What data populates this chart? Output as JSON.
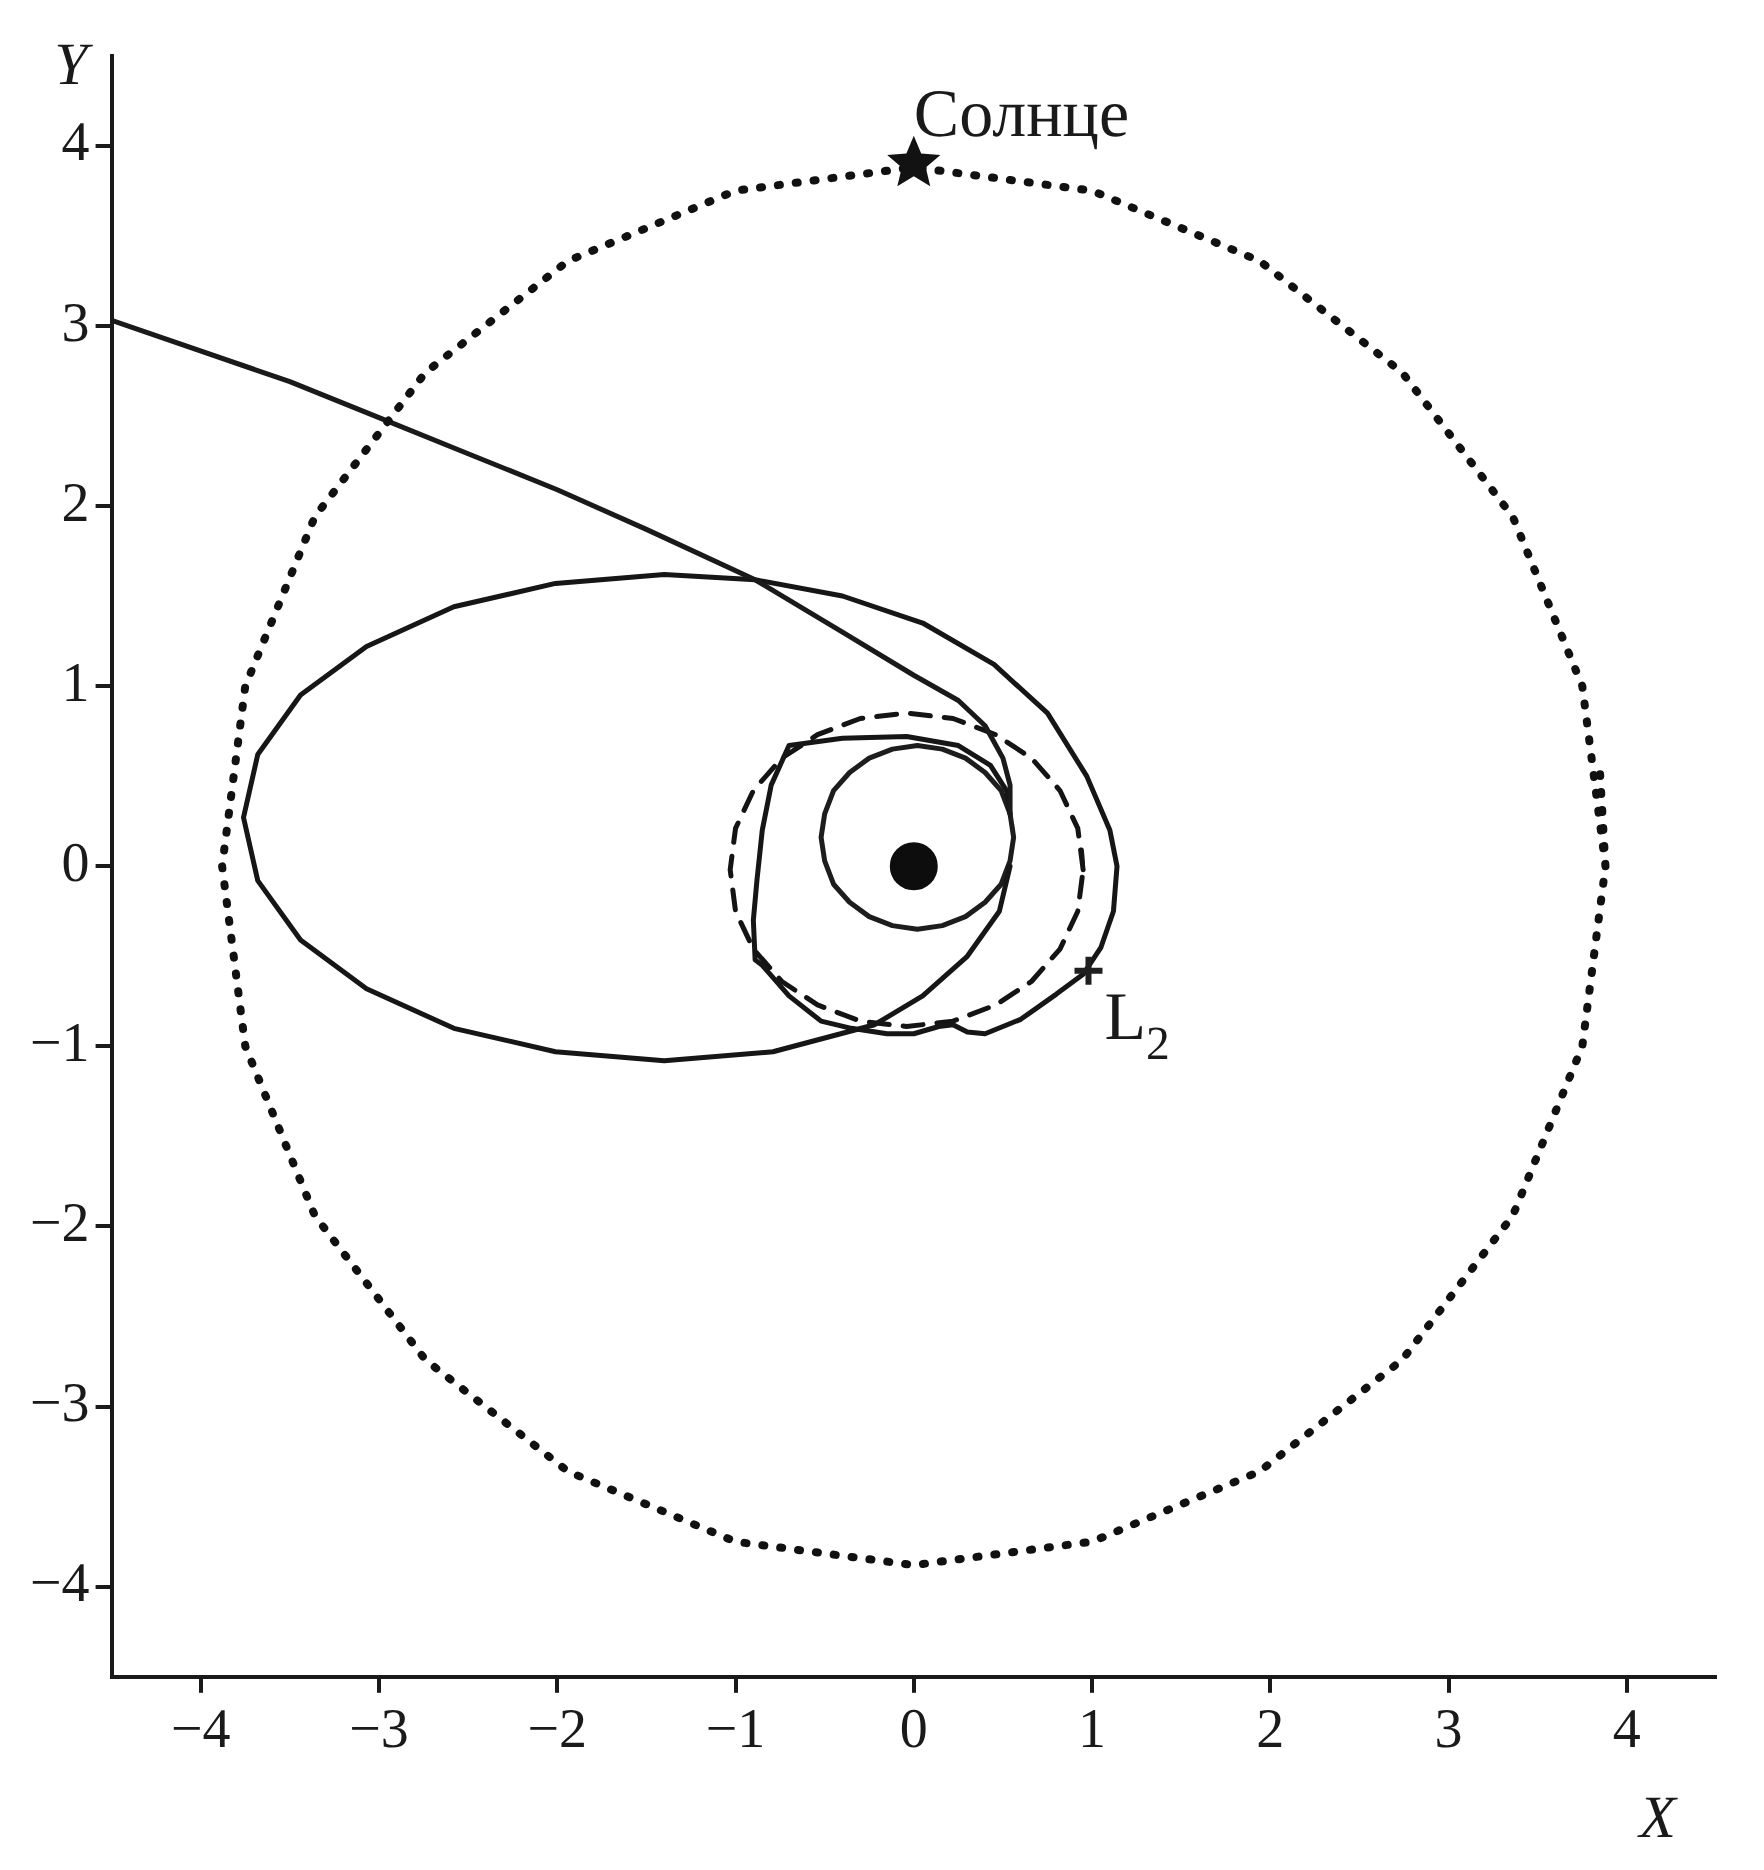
{
  "chart_data": {
    "type": "line",
    "xlabel": "X",
    "ylabel": "Y",
    "xlim": [
      -4.5,
      4.5
    ],
    "ylim": [
      -4.5,
      4.5
    ],
    "xticks": [
      {
        "value": -4,
        "label": "−4"
      },
      {
        "value": -3,
        "label": "−3"
      },
      {
        "value": -2,
        "label": "−2"
      },
      {
        "value": -1,
        "label": "−1"
      },
      0,
      1,
      2,
      3,
      4
    ],
    "yticks": [
      {
        "value": -4,
        "label": "−4"
      },
      {
        "value": -3,
        "label": "−3"
      },
      {
        "value": -2,
        "label": "−2"
      },
      {
        "value": -1,
        "label": "−1"
      },
      0,
      1,
      2,
      3,
      4
    ],
    "grid": false,
    "legend": false,
    "marker": "none",
    "annotations": [
      {
        "text": "Солнце",
        "x": 0,
        "y": 3.9
      },
      {
        "text": "L$_{2}$",
        "x": 0.98,
        "y": -0.58
      }
    ],
    "series": [
      {
        "type": "line",
        "line_style": "dotted",
        "color": "#111111",
        "x": [
          3.88,
          3.75,
          3.36,
          2.74,
          1.94,
          1.0,
          0,
          -1.0,
          -1.94,
          -2.74,
          -3.36,
          -3.75,
          -3.88,
          -3.75,
          -3.36,
          -2.74,
          -1.94,
          -1.0,
          0,
          1.0,
          1.94,
          2.74,
          3.36,
          3.75,
          3.88,
          3.85
        ],
        "values": [
          0,
          1.0,
          1.94,
          2.74,
          3.36,
          3.75,
          3.88,
          3.75,
          3.36,
          2.74,
          1.94,
          1.0,
          0,
          -1.0,
          -1.94,
          -2.74,
          -3.36,
          -3.75,
          -3.88,
          -3.75,
          -3.36,
          -2.74,
          -1.94,
          -1.0,
          0,
          0.51
        ]
      },
      {
        "type": "line",
        "line_style": "solid",
        "color": "#1a1a1a",
        "x": [
          -4.5,
          -3.5,
          -3.0,
          -2.5,
          -2.0,
          -1.5,
          -0.89,
          -0.4,
          0.0,
          0.25,
          0.4,
          0.5,
          0.54,
          0.54
        ],
        "values": [
          3.03,
          2.69,
          2.49,
          2.29,
          2.09,
          1.87,
          1.59,
          1.3,
          1.06,
          0.92,
          0.78,
          0.6,
          0.45,
          0.29
        ]
      },
      {
        "type": "line",
        "line_style": "solid",
        "color": "#161616",
        "x": [
          0.54,
          0.48,
          0.3,
          0.05,
          -0.22,
          -0.79,
          -1.4,
          -2.01,
          -2.58,
          -3.07,
          -3.44,
          -3.68,
          -3.76,
          -3.68,
          -3.44,
          -3.07,
          -2.58,
          -2.01,
          -1.4,
          -0.89,
          -0.4,
          0.05,
          0.45,
          0.75,
          0.97,
          1.1,
          1.14,
          1.12,
          1.05,
          0.95,
          0.8,
          0.6,
          0.4,
          0.3,
          0.22,
          0.14,
          0.0,
          -0.15,
          -0.35,
          -0.52,
          -0.7,
          -0.85,
          -0.89,
          -0.9,
          -0.88,
          -0.85,
          -0.8,
          -0.7,
          -0.4,
          -0.04,
          0.25,
          0.43,
          0.52,
          0.54
        ],
        "values": [
          0,
          -0.25,
          -0.5,
          -0.72,
          -0.88,
          -1.03,
          -1.08,
          -1.03,
          -0.9,
          -0.68,
          -0.41,
          -0.08,
          0.27,
          0.62,
          0.95,
          1.22,
          1.44,
          1.57,
          1.62,
          1.59,
          1.5,
          1.35,
          1.12,
          0.85,
          0.5,
          0.2,
          0,
          -0.25,
          -0.45,
          -0.6,
          -0.71,
          -0.85,
          -0.93,
          -0.92,
          -0.88,
          -0.89,
          -0.93,
          -0.93,
          -0.9,
          -0.86,
          -0.72,
          -0.55,
          -0.52,
          -0.3,
          -0.08,
          0.2,
          0.45,
          0.67,
          0.71,
          0.72,
          0.67,
          0.56,
          0.42,
          0.29
        ]
      },
      {
        "type": "line",
        "line_style": "solid",
        "color": "#1d1d1d",
        "x": [
          0.56,
          0.54,
          0.49,
          0.4,
          0.29,
          0.16,
          0.02,
          -0.12,
          -0.25,
          -0.36,
          -0.45,
          -0.5,
          -0.52,
          -0.5,
          -0.45,
          -0.36,
          -0.25,
          -0.12,
          0.02,
          0.16,
          0.29,
          0.4,
          0.49,
          0.54,
          0.56,
          0.55
        ],
        "values": [
          0.16,
          0.29,
          0.42,
          0.52,
          0.6,
          0.65,
          0.67,
          0.65,
          0.6,
          0.52,
          0.42,
          0.29,
          0.16,
          0.03,
          -0.1,
          -0.2,
          -0.28,
          -0.33,
          -0.35,
          -0.33,
          -0.28,
          -0.2,
          -0.1,
          0.03,
          0.16,
          0.23
        ]
      },
      {
        "type": "line",
        "line_style": "dashed",
        "color": "#141414",
        "x": [
          0.95,
          0.92,
          0.82,
          0.66,
          0.46,
          0.22,
          -0.04,
          -0.3,
          -0.54,
          -0.74,
          -0.9,
          -1.0,
          -1.03,
          -1.0,
          -0.9,
          -0.74,
          -0.54,
          -0.3,
          -0.04,
          0.22,
          0.46,
          0.66,
          0.82,
          0.92,
          0.95,
          0.94
        ],
        "values": [
          -0.02,
          0.21,
          0.42,
          0.6,
          0.73,
          0.82,
          0.85,
          0.82,
          0.73,
          0.6,
          0.42,
          0.21,
          -0.02,
          -0.25,
          -0.46,
          -0.64,
          -0.77,
          -0.86,
          -0.89,
          -0.86,
          -0.77,
          -0.64,
          -0.46,
          -0.25,
          -0.02,
          0.09
        ]
      },
      {
        "type": "scatter",
        "marker": "star",
        "color": "#121212",
        "x": [
          0
        ],
        "values": [
          3.9
        ]
      },
      {
        "type": "scatter",
        "marker": "circle",
        "color": "#0d0d0d",
        "x": [
          0
        ],
        "values": [
          0
        ]
      },
      {
        "type": "scatter",
        "marker": "cross",
        "color": "#1f1f1f",
        "x": [
          0.98
        ],
        "values": [
          -0.58
        ]
      }
    ]
  }
}
